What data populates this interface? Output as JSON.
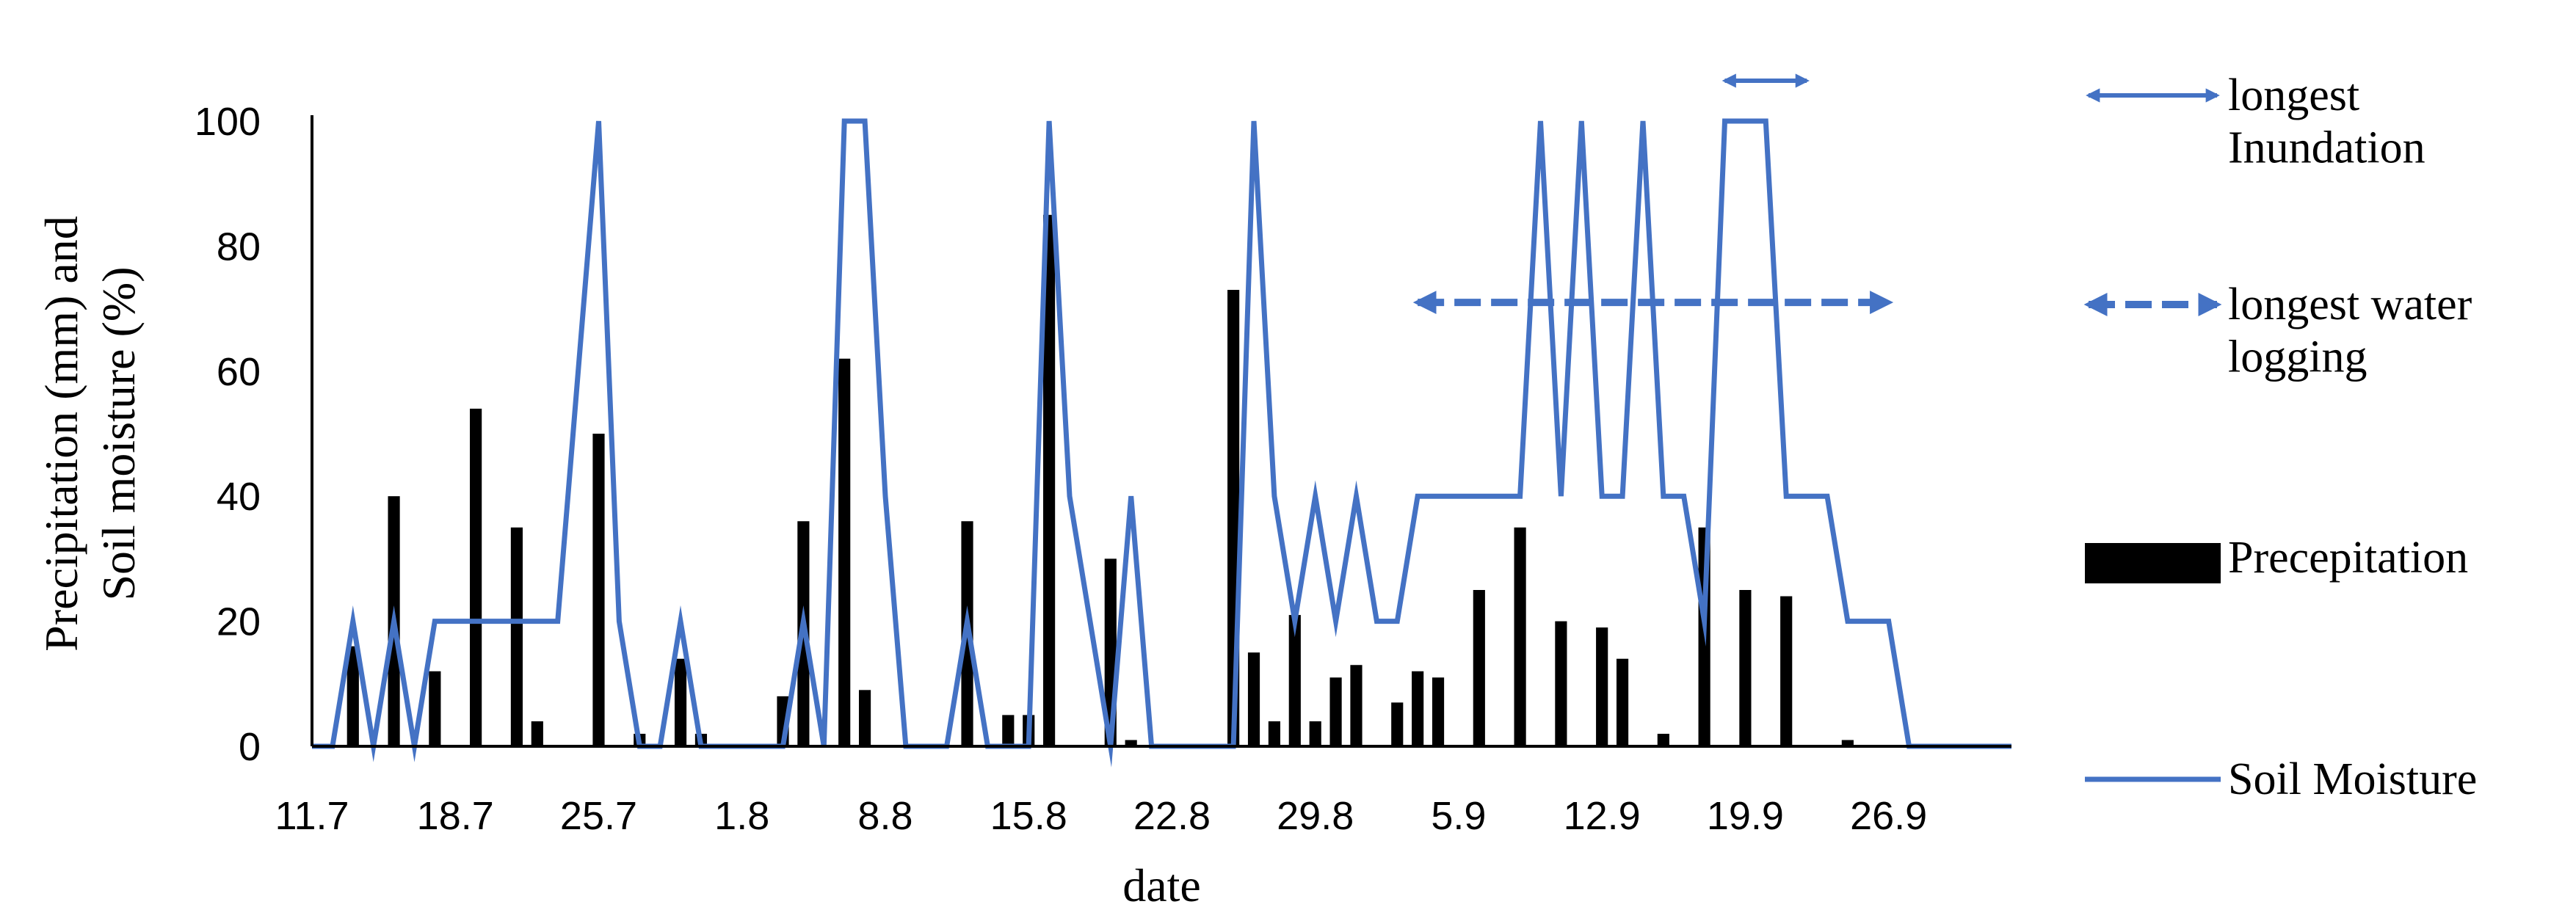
{
  "chart_data": {
    "type": "bar+line",
    "xlabel": "date",
    "ylabel_lines": [
      "Precipitation (mm) and",
      "Soil moisture (%)"
    ],
    "ylim": [
      0,
      100
    ],
    "yticks": [
      0,
      20,
      40,
      60,
      80,
      100
    ],
    "x_start": "11.7",
    "x_end": "2.10",
    "x_days": [
      "11.7",
      "12.7",
      "13.7",
      "14.7",
      "15.7",
      "16.7",
      "17.7",
      "18.7",
      "19.7",
      "20.7",
      "21.7",
      "22.7",
      "23.7",
      "24.7",
      "25.7",
      "26.7",
      "27.7",
      "28.7",
      "29.7",
      "30.7",
      "31.7",
      "1.8",
      "2.8",
      "3.8",
      "4.8",
      "5.8",
      "6.8",
      "7.8",
      "8.8",
      "9.8",
      "10.8",
      "11.8",
      "12.8",
      "13.8",
      "14.8",
      "15.8",
      "16.8",
      "17.8",
      "18.8",
      "19.8",
      "20.8",
      "21.8",
      "22.8",
      "23.8",
      "24.8",
      "25.8",
      "26.8",
      "27.8",
      "28.8",
      "29.8",
      "30.8",
      "31.8",
      "1.9",
      "2.9",
      "3.9",
      "4.9",
      "5.9",
      "6.9",
      "7.9",
      "8.9",
      "9.9",
      "10.9",
      "11.9",
      "12.9",
      "13.9",
      "14.9",
      "15.9",
      "16.9",
      "17.9",
      "18.9",
      "19.9",
      "20.9",
      "21.9",
      "22.9",
      "23.9",
      "24.9",
      "25.9",
      "26.9",
      "27.9",
      "28.9",
      "29.9",
      "30.9",
      "1.10",
      "2.10"
    ],
    "xtick_labels": [
      "11.7",
      "18.7",
      "25.7",
      "1.8",
      "8.8",
      "15.8",
      "22.8",
      "29.8",
      "5.9",
      "12.9",
      "19.9",
      "26.9"
    ],
    "grid": false,
    "legend_position": "right",
    "legend": {
      "inundation": "longest Inundation",
      "waterlogging": "longest water logging",
      "precipitation": "Precepitation",
      "soil_moisture": "Soil Moisture"
    },
    "colors": {
      "precipitation": "#000000",
      "soil_moisture": "#4472c4",
      "axis": "#000000"
    },
    "series": [
      {
        "name": "Precepitation",
        "kind": "bar",
        "points": [
          [
            "13.7",
            16
          ],
          [
            "15.7",
            40
          ],
          [
            "17.7",
            12
          ],
          [
            "19.7",
            54
          ],
          [
            "21.7",
            35
          ],
          [
            "22.7",
            4
          ],
          [
            "25.7",
            50
          ],
          [
            "27.7",
            2
          ],
          [
            "29.7",
            14
          ],
          [
            "30.7",
            2
          ],
          [
            "3.8",
            8
          ],
          [
            "4.8",
            36
          ],
          [
            "6.8",
            62
          ],
          [
            "7.8",
            9
          ],
          [
            "12.8",
            36
          ],
          [
            "14.8",
            5
          ],
          [
            "15.8",
            5
          ],
          [
            "16.8",
            85
          ],
          [
            "19.8",
            30
          ],
          [
            "20.8",
            1
          ],
          [
            "25.8",
            73
          ],
          [
            "26.8",
            15
          ],
          [
            "27.8",
            4
          ],
          [
            "28.8",
            21
          ],
          [
            "29.8",
            4
          ],
          [
            "30.8",
            11
          ],
          [
            "31.8",
            13
          ],
          [
            "2.9",
            7
          ],
          [
            "3.9",
            12
          ],
          [
            "4.9",
            11
          ],
          [
            "6.9",
            25
          ],
          [
            "8.9",
            35
          ],
          [
            "10.9",
            20
          ],
          [
            "12.9",
            19
          ],
          [
            "13.9",
            14
          ],
          [
            "15.9",
            2
          ],
          [
            "17.9",
            35
          ],
          [
            "19.9",
            25
          ],
          [
            "21.9",
            24
          ],
          [
            "24.9",
            1
          ]
        ]
      },
      {
        "name": "Soil Moisture",
        "kind": "line",
        "points": [
          [
            "11.7",
            0
          ],
          [
            "12.7",
            0
          ],
          [
            "13.7",
            20
          ],
          [
            "14.7",
            0
          ],
          [
            "15.7",
            20
          ],
          [
            "16.7",
            0
          ],
          [
            "17.7",
            20
          ],
          [
            "18.7",
            20
          ],
          [
            "19.7",
            20
          ],
          [
            "20.7",
            20
          ],
          [
            "21.7",
            20
          ],
          [
            "22.7",
            20
          ],
          [
            "23.7",
            20
          ],
          [
            "25.7",
            100
          ],
          [
            "26.7",
            20
          ],
          [
            "27.7",
            0
          ],
          [
            "28.7",
            0
          ],
          [
            "29.7",
            20
          ],
          [
            "30.7",
            0
          ],
          [
            "31.7",
            0
          ],
          [
            "1.8",
            0
          ],
          [
            "2.8",
            0
          ],
          [
            "3.8",
            0
          ],
          [
            "4.8",
            20
          ],
          [
            "5.8",
            0
          ],
          [
            "6.8",
            100
          ],
          [
            "7.8",
            100
          ],
          [
            "8.8",
            40
          ],
          [
            "9.8",
            0
          ],
          [
            "10.8",
            0
          ],
          [
            "11.8",
            0
          ],
          [
            "12.8",
            20
          ],
          [
            "13.8",
            0
          ],
          [
            "14.8",
            0
          ],
          [
            "15.8",
            0
          ],
          [
            "16.8",
            100
          ],
          [
            "17.8",
            40
          ],
          [
            "18.8",
            20
          ],
          [
            "19.8",
            0
          ],
          [
            "20.8",
            40
          ],
          [
            "21.8",
            0
          ],
          [
            "22.8",
            0
          ],
          [
            "23.8",
            0
          ],
          [
            "24.8",
            0
          ],
          [
            "25.8",
            0
          ],
          [
            "26.8",
            100
          ],
          [
            "27.8",
            40
          ],
          [
            "28.8",
            20
          ],
          [
            "29.8",
            40
          ],
          [
            "30.8",
            20
          ],
          [
            "31.8",
            40
          ],
          [
            "1.9",
            20
          ],
          [
            "2.9",
            20
          ],
          [
            "3.9",
            40
          ],
          [
            "4.9",
            40
          ],
          [
            "5.9",
            40
          ],
          [
            "6.9",
            40
          ],
          [
            "7.9",
            40
          ],
          [
            "8.9",
            40
          ],
          [
            "9.9",
            100
          ],
          [
            "10.9",
            40
          ],
          [
            "11.9",
            100
          ],
          [
            "12.9",
            40
          ],
          [
            "13.9",
            40
          ],
          [
            "14.9",
            100
          ],
          [
            "15.9",
            40
          ],
          [
            "16.9",
            40
          ],
          [
            "17.9",
            20
          ],
          [
            "18.9",
            100
          ],
          [
            "19.9",
            100
          ],
          [
            "20.9",
            100
          ],
          [
            "21.9",
            40
          ],
          [
            "22.9",
            40
          ],
          [
            "23.9",
            40
          ],
          [
            "24.9",
            20
          ],
          [
            "25.9",
            20
          ],
          [
            "26.9",
            20
          ],
          [
            "27.9",
            0
          ],
          [
            "28.9",
            0
          ],
          [
            "29.9",
            0
          ],
          [
            "30.9",
            0
          ],
          [
            "1.10",
            0
          ],
          [
            "2.10",
            0
          ]
        ]
      }
    ],
    "annotations": [
      {
        "type": "arrow",
        "style": "solid",
        "label": "longest Inundation",
        "y": 100,
        "from": "18.9",
        "to": "22.9"
      },
      {
        "type": "arrow",
        "style": "dashed",
        "label": "longest water logging",
        "y": 71,
        "from": "3.9",
        "to": "26.9"
      }
    ]
  }
}
